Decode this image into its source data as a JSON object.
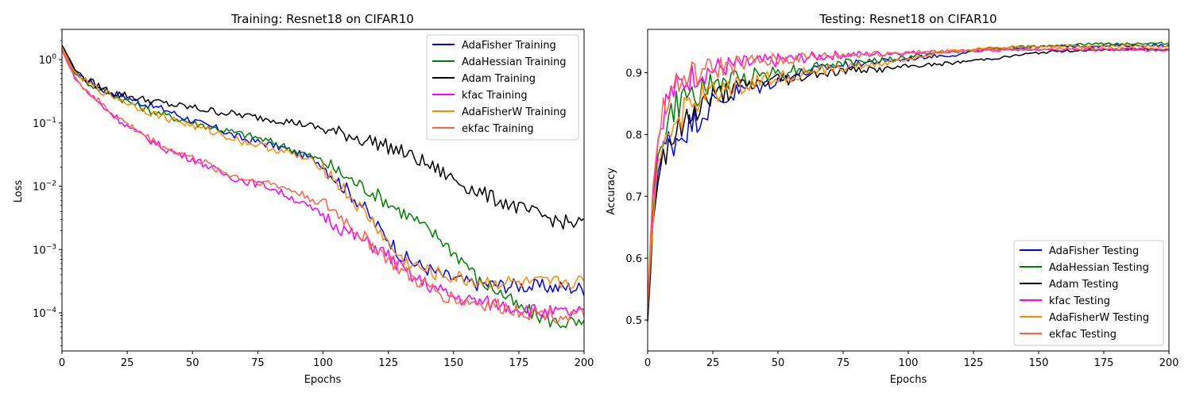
{
  "chart_data": [
    {
      "type": "line",
      "title": "Training: Resnet18 on CIFAR10",
      "xlabel": "Epochs",
      "ylabel": "Loss",
      "xlim": [
        0,
        200
      ],
      "ylim": [
        2.5e-05,
        3
      ],
      "yscale": "log",
      "xticks": [
        "0",
        "25",
        "50",
        "75",
        "100",
        "125",
        "150",
        "175",
        "200"
      ],
      "yticks": [
        {
          "value": 0.0001,
          "base": "10",
          "exp": "−4"
        },
        {
          "value": 0.001,
          "base": "10",
          "exp": "−3"
        },
        {
          "value": 0.01,
          "base": "10",
          "exp": "−2"
        },
        {
          "value": 0.1,
          "base": "10",
          "exp": "−1"
        },
        {
          "value": 1,
          "base": "10",
          "exp": "0"
        }
      ],
      "legend_position": "top-right",
      "x": [
        0,
        5,
        10,
        15,
        20,
        25,
        30,
        35,
        40,
        45,
        50,
        55,
        60,
        65,
        70,
        75,
        80,
        85,
        90,
        95,
        100,
        105,
        110,
        115,
        120,
        125,
        130,
        135,
        140,
        145,
        150,
        155,
        160,
        165,
        170,
        175,
        180,
        185,
        190,
        195,
        200
      ],
      "series": [
        {
          "name": "AdaFisher Training",
          "color": "#0000ff",
          "values": [
            1.6,
            0.65,
            0.45,
            0.35,
            0.29,
            0.25,
            0.21,
            0.18,
            0.16,
            0.13,
            0.11,
            0.09,
            0.08,
            0.065,
            0.055,
            0.05,
            0.045,
            0.04,
            0.033,
            0.028,
            0.022,
            0.013,
            0.008,
            0.005,
            0.0025,
            0.0015,
            0.0008,
            0.0006,
            0.0005,
            0.0004,
            0.00035,
            0.0003,
            0.00029,
            0.00028,
            0.00027,
            0.00027,
            0.00026,
            0.00026,
            0.00025,
            0.00025,
            0.00024
          ]
        },
        {
          "name": "AdaHessian Training",
          "color": "#008000",
          "values": [
            1.5,
            0.6,
            0.42,
            0.33,
            0.27,
            0.22,
            0.18,
            0.15,
            0.13,
            0.115,
            0.1,
            0.09,
            0.08,
            0.072,
            0.065,
            0.058,
            0.05,
            0.043,
            0.036,
            0.03,
            0.025,
            0.018,
            0.013,
            0.01,
            0.0075,
            0.0055,
            0.004,
            0.003,
            0.002,
            0.0015,
            0.0009,
            0.0006,
            0.0003,
            0.00025,
            0.00018,
            0.00012,
            0.0001,
            8e-05,
            7e-05,
            7e-05,
            6e-05
          ]
        },
        {
          "name": "Adam Training",
          "color": "#000000",
          "values": [
            1.7,
            0.7,
            0.47,
            0.36,
            0.3,
            0.27,
            0.24,
            0.22,
            0.2,
            0.185,
            0.175,
            0.16,
            0.15,
            0.14,
            0.13,
            0.122,
            0.115,
            0.108,
            0.1,
            0.09,
            0.08,
            0.07,
            0.065,
            0.055,
            0.05,
            0.042,
            0.035,
            0.028,
            0.022,
            0.017,
            0.013,
            0.01,
            0.008,
            0.0065,
            0.0055,
            0.0045,
            0.0038,
            0.0033,
            0.0028,
            0.0026,
            0.0026
          ]
        },
        {
          "name": "kfac Training",
          "color": "#ff00ff",
          "values": [
            1.4,
            0.5,
            0.3,
            0.19,
            0.13,
            0.09,
            0.065,
            0.05,
            0.038,
            0.032,
            0.027,
            0.022,
            0.017,
            0.014,
            0.012,
            0.011,
            0.0095,
            0.0075,
            0.006,
            0.0045,
            0.0035,
            0.0025,
            0.0018,
            0.0014,
            0.0011,
            0.0008,
            0.0005,
            0.00035,
            0.00028,
            0.00022,
            0.00018,
            0.00016,
            0.00015,
            0.00014,
            0.00013,
            0.00012,
            0.00011,
            0.0001,
            0.0001,
            0.0001,
            0.0001
          ]
        },
        {
          "name": "AdaFisherW Training",
          "color": "#ff8c00",
          "values": [
            1.55,
            0.62,
            0.42,
            0.32,
            0.26,
            0.21,
            0.17,
            0.14,
            0.12,
            0.105,
            0.09,
            0.078,
            0.068,
            0.058,
            0.05,
            0.045,
            0.04,
            0.035,
            0.03,
            0.025,
            0.02,
            0.012,
            0.007,
            0.004,
            0.0025,
            0.0012,
            0.0007,
            0.00055,
            0.00045,
            0.0004,
            0.00036,
            0.00033,
            0.00031,
            0.0003,
            0.0003,
            0.00029,
            0.00029,
            0.00029,
            0.0003,
            0.00031,
            0.0003
          ]
        },
        {
          "name": "ekfac Training",
          "color": "#ff6347",
          "values": [
            1.45,
            0.52,
            0.31,
            0.2,
            0.135,
            0.095,
            0.07,
            0.052,
            0.04,
            0.033,
            0.028,
            0.023,
            0.018,
            0.015,
            0.013,
            0.012,
            0.011,
            0.0095,
            0.008,
            0.0065,
            0.0052,
            0.0038,
            0.0025,
            0.0016,
            0.0011,
            0.0007,
            0.00045,
            0.00033,
            0.00026,
            0.0002,
            0.00017,
            0.00015,
            0.00014,
            0.00013,
            0.00012,
            0.00011,
            0.0001,
            0.0001,
            9e-05,
            9e-05,
            9e-05
          ]
        }
      ]
    },
    {
      "type": "line",
      "title": "Testing: Resnet18 on CIFAR10",
      "xlabel": "Epochs",
      "ylabel": "Accuracy",
      "xlim": [
        0,
        200
      ],
      "ylim": [
        0.45,
        0.97
      ],
      "xticks": [
        "0",
        "25",
        "50",
        "75",
        "100",
        "125",
        "150",
        "175",
        "200"
      ],
      "yticks": [
        "0.5",
        "0.6",
        "0.7",
        "0.8",
        "0.9"
      ],
      "legend_position": "bottom-right",
      "x": [
        0,
        2,
        4,
        6,
        8,
        10,
        15,
        20,
        25,
        30,
        35,
        40,
        45,
        50,
        55,
        60,
        65,
        70,
        75,
        80,
        85,
        90,
        95,
        100,
        105,
        110,
        115,
        120,
        125,
        130,
        135,
        140,
        145,
        150,
        155,
        160,
        165,
        170,
        175,
        180,
        185,
        190,
        195,
        200
      ],
      "series": [
        {
          "name": "AdaFisher Testing",
          "color": "#0000ff",
          "values": [
            0.5,
            0.66,
            0.74,
            0.77,
            0.79,
            0.79,
            0.81,
            0.83,
            0.85,
            0.86,
            0.87,
            0.875,
            0.88,
            0.89,
            0.895,
            0.9,
            0.905,
            0.91,
            0.912,
            0.915,
            0.917,
            0.919,
            0.92,
            0.922,
            0.925,
            0.927,
            0.928,
            0.93,
            0.935,
            0.937,
            0.938,
            0.94,
            0.941,
            0.942,
            0.942,
            0.943,
            0.943,
            0.943,
            0.943,
            0.944,
            0.944,
            0.944,
            0.944,
            0.944
          ]
        },
        {
          "name": "AdaHessian Testing",
          "color": "#008000",
          "values": [
            0.51,
            0.67,
            0.76,
            0.8,
            0.82,
            0.84,
            0.86,
            0.87,
            0.88,
            0.885,
            0.89,
            0.895,
            0.9,
            0.9,
            0.905,
            0.905,
            0.91,
            0.912,
            0.915,
            0.917,
            0.919,
            0.92,
            0.922,
            0.925,
            0.928,
            0.93,
            0.933,
            0.935,
            0.937,
            0.939,
            0.94,
            0.941,
            0.942,
            0.943,
            0.944,
            0.945,
            0.946,
            0.946,
            0.947,
            0.947,
            0.947,
            0.947,
            0.947,
            0.948
          ]
        },
        {
          "name": "Adam Testing",
          "color": "#000000",
          "values": [
            0.5,
            0.65,
            0.73,
            0.77,
            0.79,
            0.8,
            0.82,
            0.85,
            0.86,
            0.87,
            0.875,
            0.88,
            0.885,
            0.89,
            0.89,
            0.895,
            0.9,
            0.9,
            0.903,
            0.905,
            0.905,
            0.905,
            0.908,
            0.91,
            0.912,
            0.913,
            0.915,
            0.917,
            0.92,
            0.922,
            0.924,
            0.927,
            0.93,
            0.932,
            0.934,
            0.935,
            0.936,
            0.937,
            0.937,
            0.938,
            0.938,
            0.938,
            0.938,
            0.938
          ]
        },
        {
          "name": "kfac Testing",
          "color": "#ff00ff",
          "values": [
            0.52,
            0.7,
            0.79,
            0.84,
            0.86,
            0.87,
            0.89,
            0.9,
            0.905,
            0.91,
            0.912,
            0.915,
            0.917,
            0.92,
            0.922,
            0.924,
            0.926,
            0.928,
            0.929,
            0.93,
            0.93,
            0.931,
            0.932,
            0.932,
            0.933,
            0.934,
            0.934,
            0.935,
            0.935,
            0.936,
            0.936,
            0.937,
            0.937,
            0.937,
            0.937,
            0.937,
            0.937,
            0.937,
            0.937,
            0.937,
            0.937,
            0.937,
            0.937,
            0.937
          ]
        },
        {
          "name": "AdaFisherW Testing",
          "color": "#ff8c00",
          "values": [
            0.51,
            0.66,
            0.75,
            0.79,
            0.81,
            0.82,
            0.84,
            0.86,
            0.87,
            0.875,
            0.88,
            0.885,
            0.89,
            0.893,
            0.895,
            0.9,
            0.903,
            0.905,
            0.908,
            0.91,
            0.912,
            0.915,
            0.918,
            0.922,
            0.926,
            0.93,
            0.933,
            0.936,
            0.938,
            0.94,
            0.941,
            0.942,
            0.942,
            0.943,
            0.943,
            0.943,
            0.943,
            0.943,
            0.943,
            0.943,
            0.943,
            0.943,
            0.943,
            0.943
          ]
        },
        {
          "name": "ekfac Testing",
          "color": "#ff6347",
          "values": [
            0.52,
            0.71,
            0.8,
            0.84,
            0.86,
            0.875,
            0.89,
            0.9,
            0.905,
            0.91,
            0.913,
            0.916,
            0.918,
            0.92,
            0.922,
            0.924,
            0.925,
            0.927,
            0.928,
            0.929,
            0.93,
            0.931,
            0.932,
            0.933,
            0.933,
            0.934,
            0.935,
            0.935,
            0.936,
            0.937,
            0.937,
            0.938,
            0.938,
            0.938,
            0.939,
            0.939,
            0.939,
            0.939,
            0.939,
            0.939,
            0.939,
            0.939,
            0.939,
            0.939
          ]
        }
      ]
    }
  ]
}
